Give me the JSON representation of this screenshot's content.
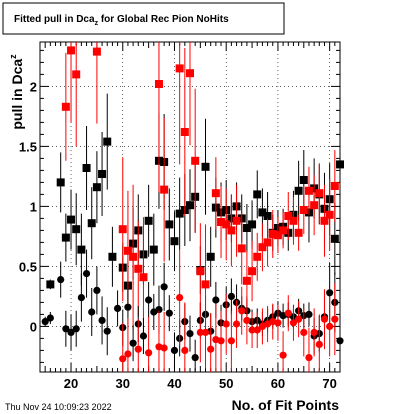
{
  "chart_data": {
    "type": "scatter",
    "title": "Fitted pull in Dca",
    "title_sub": "z",
    "title_rest": " for Global Rec Pion NoHits",
    "xlabel": "No. of Fit Points",
    "ylabel": "pull in Dca",
    "ylabel_sub": "z",
    "timestamp": "Thu Nov 24 10:09:23 2022",
    "xlim": [
      14,
      72
    ],
    "ylim": [
      -0.38,
      2.37
    ],
    "x_ticks": [
      20,
      30,
      40,
      50,
      60,
      70
    ],
    "y_ticks": [
      0,
      0.5,
      1,
      1.5,
      2
    ],
    "grid": true,
    "colors": {
      "black_series": "#000000",
      "red_series": "#ff0000",
      "frame": "#000000"
    },
    "series": [
      {
        "marker": "square",
        "color": "#000000",
        "points": [
          {
            "x": 16,
            "y": 0.35,
            "e": 0.04
          },
          {
            "x": 18,
            "y": 1.2,
            "e": 0.25
          },
          {
            "x": 19,
            "y": 0.74,
            "e": 0.2
          },
          {
            "x": 20,
            "y": 0.89,
            "e": 0.25
          },
          {
            "x": 21,
            "y": 0.81,
            "e": 0.3
          },
          {
            "x": 22,
            "y": 0.64,
            "e": 0.3
          },
          {
            "x": 23,
            "y": 1.32,
            "e": 0.35
          },
          {
            "x": 24,
            "y": 0.86,
            "e": 0.3
          },
          {
            "x": 25,
            "y": 1.16,
            "e": 0.3
          },
          {
            "x": 26,
            "y": 1.27,
            "e": 0.35
          },
          {
            "x": 27,
            "y": 1.54,
            "e": 0.4
          },
          {
            "x": 28,
            "y": 0.58,
            "e": 0.25
          },
          {
            "x": 30,
            "y": 0.49,
            "e": 0.2
          },
          {
            "x": 31,
            "y": 0.34,
            "e": 0.2
          },
          {
            "x": 32,
            "y": 0.69,
            "e": 0.3
          },
          {
            "x": 33,
            "y": 0.8,
            "e": 0.3
          },
          {
            "x": 34,
            "y": 0.6,
            "e": 0.25
          },
          {
            "x": 35,
            "y": 0.88,
            "e": 0.3
          },
          {
            "x": 36,
            "y": 0.64,
            "e": 0.3
          },
          {
            "x": 37,
            "y": 1.38,
            "e": 0.4
          },
          {
            "x": 38,
            "y": 1.37,
            "e": 0.4
          },
          {
            "x": 39,
            "y": 0.85,
            "e": 0.3
          },
          {
            "x": 40,
            "y": 0.71,
            "e": 0.25
          },
          {
            "x": 41,
            "y": 0.94,
            "e": 0.3
          },
          {
            "x": 42,
            "y": 0.97,
            "e": 0.3
          },
          {
            "x": 43,
            "y": 1.01,
            "e": 0.3
          },
          {
            "x": 44,
            "y": 1.08,
            "e": 0.3
          },
          {
            "x": 45,
            "y": 0.47,
            "e": 0.2
          },
          {
            "x": 46,
            "y": 1.33,
            "e": 0.4
          },
          {
            "x": 47,
            "y": 0.58,
            "e": 0.25
          },
          {
            "x": 48,
            "y": 0.99,
            "e": 0.25
          },
          {
            "x": 49,
            "y": 0.95,
            "e": 0.25
          },
          {
            "x": 50,
            "y": 0.97,
            "e": 0.25
          },
          {
            "x": 51,
            "y": 0.9,
            "e": 0.2
          },
          {
            "x": 52,
            "y": 1.0,
            "e": 0.2
          },
          {
            "x": 53,
            "y": 0.9,
            "e": 0.2
          },
          {
            "x": 54,
            "y": 0.82,
            "e": 0.2
          },
          {
            "x": 55,
            "y": 0.85,
            "e": 0.2
          },
          {
            "x": 56,
            "y": 1.1,
            "e": 0.2
          },
          {
            "x": 57,
            "y": 0.95,
            "e": 0.2
          },
          {
            "x": 58,
            "y": 0.92,
            "e": 0.2
          },
          {
            "x": 59,
            "y": 0.78,
            "e": 0.15
          },
          {
            "x": 60,
            "y": 0.82,
            "e": 0.15
          },
          {
            "x": 61,
            "y": 0.83,
            "e": 0.15
          },
          {
            "x": 62,
            "y": 0.78,
            "e": 0.15
          },
          {
            "x": 63,
            "y": 0.93,
            "e": 0.2
          },
          {
            "x": 64,
            "y": 1.13,
            "e": 0.25
          },
          {
            "x": 65,
            "y": 1.22,
            "e": 0.25
          },
          {
            "x": 66,
            "y": 0.95,
            "e": 0.25
          },
          {
            "x": 67,
            "y": 1.15,
            "e": 0.25
          },
          {
            "x": 68,
            "y": 1.1,
            "e": 0.25
          },
          {
            "x": 69,
            "y": 0.98,
            "e": 0.3
          },
          {
            "x": 70,
            "y": 1.06,
            "e": 0.3
          },
          {
            "x": 71,
            "y": 0.73,
            "e": 0.3
          },
          {
            "x": 72,
            "y": 1.35,
            "e": 0.35
          }
        ]
      },
      {
        "marker": "square",
        "color": "#ff0000",
        "points": [
          {
            "x": 19,
            "y": 1.83,
            "e": 0.45
          },
          {
            "x": 20,
            "y": 2.3,
            "e": 0.6
          },
          {
            "x": 21,
            "y": 2.1,
            "e": 0.6
          },
          {
            "x": 25,
            "y": 2.29,
            "e": 0.6
          },
          {
            "x": 30,
            "y": 0.81,
            "e": 0.6
          },
          {
            "x": 31,
            "y": 0.63,
            "e": 0.5
          },
          {
            "x": 32,
            "y": 0.58,
            "e": 0.6
          },
          {
            "x": 33,
            "y": 0.48,
            "e": 0.4
          },
          {
            "x": 34,
            "y": 0.41,
            "e": 0.5
          },
          {
            "x": 37,
            "y": 2.02,
            "e": 0.9
          },
          {
            "x": 38,
            "y": 1.14,
            "e": 0.6
          },
          {
            "x": 41,
            "y": 2.15,
            "e": 0.8
          },
          {
            "x": 42,
            "y": 1.62,
            "e": 0.7
          },
          {
            "x": 43,
            "y": 2.11,
            "e": 0.6
          },
          {
            "x": 44,
            "y": 1.38,
            "e": 0.6
          },
          {
            "x": 45,
            "y": 0.46,
            "e": 0.4
          },
          {
            "x": 46,
            "y": 0.35,
            "e": 0.5
          },
          {
            "x": 48,
            "y": 1.11,
            "e": 0.3
          },
          {
            "x": 49,
            "y": 0.87,
            "e": 0.3
          },
          {
            "x": 50,
            "y": 0.85,
            "e": 0.3
          },
          {
            "x": 51,
            "y": 0.8,
            "e": 0.3
          },
          {
            "x": 52,
            "y": 0.88,
            "e": 0.3
          },
          {
            "x": 53,
            "y": 0.65,
            "e": 0.3
          },
          {
            "x": 54,
            "y": 0.38,
            "e": 0.25
          },
          {
            "x": 55,
            "y": 0.46,
            "e": 0.25
          },
          {
            "x": 56,
            "y": 0.58,
            "e": 0.2
          },
          {
            "x": 57,
            "y": 0.66,
            "e": 0.2
          },
          {
            "x": 58,
            "y": 0.7,
            "e": 0.2
          },
          {
            "x": 59,
            "y": 0.77,
            "e": 0.2
          },
          {
            "x": 60,
            "y": 0.76,
            "e": 0.15
          },
          {
            "x": 61,
            "y": 0.8,
            "e": 0.15
          },
          {
            "x": 62,
            "y": 0.92,
            "e": 0.2
          },
          {
            "x": 63,
            "y": 0.88,
            "e": 0.2
          },
          {
            "x": 64,
            "y": 0.78,
            "e": 0.15
          },
          {
            "x": 65,
            "y": 0.97,
            "e": 0.2
          },
          {
            "x": 66,
            "y": 1.13,
            "e": 0.2
          },
          {
            "x": 67,
            "y": 1.01,
            "e": 0.25
          },
          {
            "x": 68,
            "y": 1.11,
            "e": 0.25
          },
          {
            "x": 69,
            "y": 0.88,
            "e": 0.3
          },
          {
            "x": 70,
            "y": 0.93,
            "e": 0.3
          },
          {
            "x": 71,
            "y": 1.17,
            "e": 0.3
          }
        ]
      },
      {
        "marker": "circle",
        "color": "#000000",
        "points": [
          {
            "x": 15,
            "y": 0.04,
            "e": 0.04
          },
          {
            "x": 16,
            "y": 0.07,
            "e": 0.05
          },
          {
            "x": 18,
            "y": 0.39,
            "e": 0.15
          },
          {
            "x": 19,
            "y": -0.02,
            "e": 0.15
          },
          {
            "x": 20,
            "y": -0.05,
            "e": 0.15
          },
          {
            "x": 21,
            "y": -0.02,
            "e": 0.15
          },
          {
            "x": 22,
            "y": 0.24,
            "e": 0.2
          },
          {
            "x": 23,
            "y": 0.44,
            "e": 0.2
          },
          {
            "x": 24,
            "y": 0.12,
            "e": 0.2
          },
          {
            "x": 25,
            "y": 0.3,
            "e": 0.2
          },
          {
            "x": 26,
            "y": 0.05,
            "e": 0.2
          },
          {
            "x": 27,
            "y": -0.04,
            "e": 0.2
          },
          {
            "x": 29,
            "y": 0.15,
            "e": 0.15
          },
          {
            "x": 30,
            "y": -0.01,
            "e": 0.15
          },
          {
            "x": 31,
            "y": 0.16,
            "e": 0.15
          },
          {
            "x": 32,
            "y": -0.14,
            "e": 0.15
          },
          {
            "x": 33,
            "y": 0.02,
            "e": 0.15
          },
          {
            "x": 34,
            "y": -0.08,
            "e": 0.15
          },
          {
            "x": 35,
            "y": 0.22,
            "e": 0.15
          },
          {
            "x": 36,
            "y": 0.12,
            "e": 0.15
          },
          {
            "x": 37,
            "y": 0.14,
            "e": 0.2
          },
          {
            "x": 38,
            "y": 0.33,
            "e": 0.2
          },
          {
            "x": 39,
            "y": 0.11,
            "e": 0.15
          },
          {
            "x": 40,
            "y": -0.2,
            "e": 0.15
          },
          {
            "x": 41,
            "y": -0.1,
            "e": 0.15
          },
          {
            "x": 42,
            "y": 0.04,
            "e": 0.15
          },
          {
            "x": 43,
            "y": -0.06,
            "e": 0.15
          },
          {
            "x": 44,
            "y": -0.26,
            "e": 0.15
          },
          {
            "x": 45,
            "y": 0.05,
            "e": 0.15
          },
          {
            "x": 46,
            "y": 0.1,
            "e": 0.15
          },
          {
            "x": 47,
            "y": -0.04,
            "e": 0.15
          },
          {
            "x": 48,
            "y": 0.22,
            "e": 0.15
          },
          {
            "x": 49,
            "y": 0.03,
            "e": 0.15
          },
          {
            "x": 50,
            "y": 0.18,
            "e": 0.15
          },
          {
            "x": 51,
            "y": 0.25,
            "e": 0.15
          },
          {
            "x": 52,
            "y": 0.2,
            "e": 0.15
          },
          {
            "x": 53,
            "y": 0.15,
            "e": 0.1
          },
          {
            "x": 54,
            "y": 0.13,
            "e": 0.1
          },
          {
            "x": 55,
            "y": 0.04,
            "e": 0.1
          },
          {
            "x": 56,
            "y": 0.05,
            "e": 0.1
          },
          {
            "x": 57,
            "y": 0.02,
            "e": 0.1
          },
          {
            "x": 58,
            "y": 0.05,
            "e": 0.1
          },
          {
            "x": 59,
            "y": 0.08,
            "e": 0.1
          },
          {
            "x": 60,
            "y": 0.11,
            "e": 0.1
          },
          {
            "x": 61,
            "y": 0.09,
            "e": 0.1
          },
          {
            "x": 62,
            "y": 0.1,
            "e": 0.1
          },
          {
            "x": 63,
            "y": 0.08,
            "e": 0.1
          },
          {
            "x": 64,
            "y": 0.13,
            "e": 0.1
          },
          {
            "x": 65,
            "y": 0.09,
            "e": 0.1
          },
          {
            "x": 66,
            "y": 0.1,
            "e": 0.1
          },
          {
            "x": 67,
            "y": -0.08,
            "e": 0.15
          },
          {
            "x": 68,
            "y": -0.06,
            "e": 0.15
          },
          {
            "x": 69,
            "y": 0.08,
            "e": 0.2
          },
          {
            "x": 70,
            "y": 0.28,
            "e": 0.25
          },
          {
            "x": 71,
            "y": 0.2,
            "e": 0.25
          },
          {
            "x": 72,
            "y": -0.12,
            "e": 0.25
          }
        ]
      },
      {
        "marker": "circle",
        "color": "#ff0000",
        "points": [
          {
            "x": 30,
            "y": -0.27,
            "e": 0.3
          },
          {
            "x": 31,
            "y": -0.23,
            "e": 0.3
          },
          {
            "x": 33,
            "y": -0.19,
            "e": 0.25
          },
          {
            "x": 35,
            "y": -0.22,
            "e": 0.3
          },
          {
            "x": 37,
            "y": -0.17,
            "e": 0.3
          },
          {
            "x": 38,
            "y": -0.18,
            "e": 0.3
          },
          {
            "x": 41,
            "y": 0.24,
            "e": 0.4
          },
          {
            "x": 42,
            "y": -0.2,
            "e": 0.4
          },
          {
            "x": 45,
            "y": -0.05,
            "e": 0.25
          },
          {
            "x": 46,
            "y": -0.05,
            "e": 0.3
          },
          {
            "x": 47,
            "y": -0.19,
            "e": 0.3
          },
          {
            "x": 48,
            "y": -0.11,
            "e": 0.3
          },
          {
            "x": 49,
            "y": -0.12,
            "e": 0.25
          },
          {
            "x": 50,
            "y": 0.02,
            "e": 0.25
          },
          {
            "x": 51,
            "y": -0.12,
            "e": 0.25
          },
          {
            "x": 52,
            "y": 0.02,
            "e": 0.2
          },
          {
            "x": 53,
            "y": 0.13,
            "e": 0.2
          },
          {
            "x": 54,
            "y": 0.05,
            "e": 0.2
          },
          {
            "x": 55,
            "y": -0.03,
            "e": 0.15
          },
          {
            "x": 56,
            "y": -0.03,
            "e": 0.15
          },
          {
            "x": 57,
            "y": 0.0,
            "e": 0.15
          },
          {
            "x": 58,
            "y": 0.02,
            "e": 0.15
          },
          {
            "x": 59,
            "y": 0.04,
            "e": 0.15
          },
          {
            "x": 60,
            "y": 0.03,
            "e": 0.15
          },
          {
            "x": 61,
            "y": -0.24,
            "e": 0.2
          },
          {
            "x": 62,
            "y": 0.11,
            "e": 0.15
          },
          {
            "x": 63,
            "y": 0.03,
            "e": 0.15
          },
          {
            "x": 64,
            "y": 0.06,
            "e": 0.15
          },
          {
            "x": 65,
            "y": -0.05,
            "e": 0.2
          },
          {
            "x": 66,
            "y": -0.26,
            "e": 0.25
          },
          {
            "x": 67,
            "y": -0.05,
            "e": 0.2
          },
          {
            "x": 68,
            "y": -0.15,
            "e": 0.25
          },
          {
            "x": 69,
            "y": 0.06,
            "e": 0.25
          },
          {
            "x": 70,
            "y": 0.0,
            "e": 0.25
          },
          {
            "x": 71,
            "y": 0.06,
            "e": 0.3
          }
        ]
      }
    ]
  }
}
